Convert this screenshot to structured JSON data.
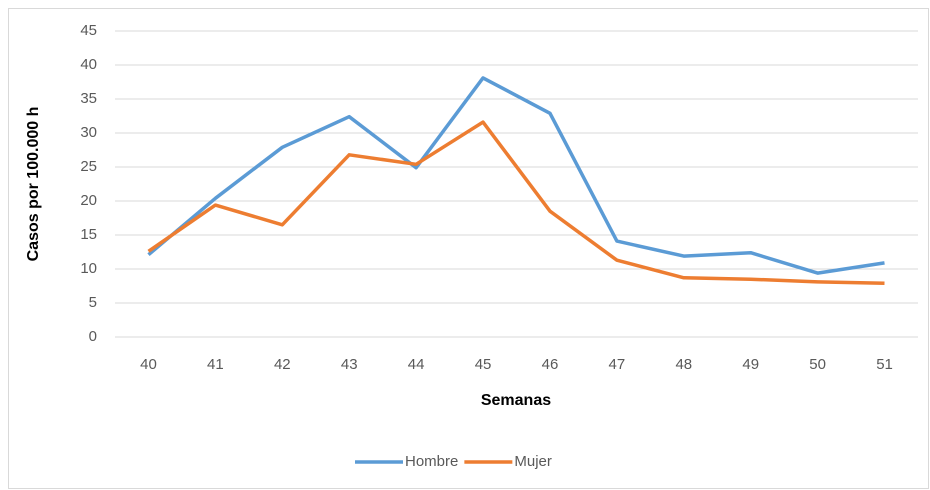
{
  "chart_data": {
    "type": "line",
    "x_label": "Semanas",
    "y_label": "Casos por 100.000 h",
    "categories": [
      "40",
      "41",
      "42",
      "43",
      "44",
      "45",
      "46",
      "47",
      "48",
      "49",
      "50",
      "51"
    ],
    "series": [
      {
        "name": "Hombre",
        "color": "#5b9bd5",
        "values": [
          12.1,
          20.4,
          27.9,
          32.4,
          24.9,
          38.1,
          32.9,
          14.1,
          11.9,
          12.4,
          9.4,
          10.9
        ]
      },
      {
        "name": "Mujer",
        "color": "#ed7d31",
        "values": [
          12.6,
          19.4,
          16.5,
          26.8,
          25.4,
          31.6,
          18.5,
          11.3,
          8.7,
          8.5,
          8.1,
          7.9
        ]
      }
    ],
    "ylim": [
      0,
      45
    ],
    "yticks": [
      0,
      5,
      10,
      15,
      20,
      25,
      30,
      35,
      40,
      45
    ],
    "grid": true,
    "legend": "bottom"
  }
}
